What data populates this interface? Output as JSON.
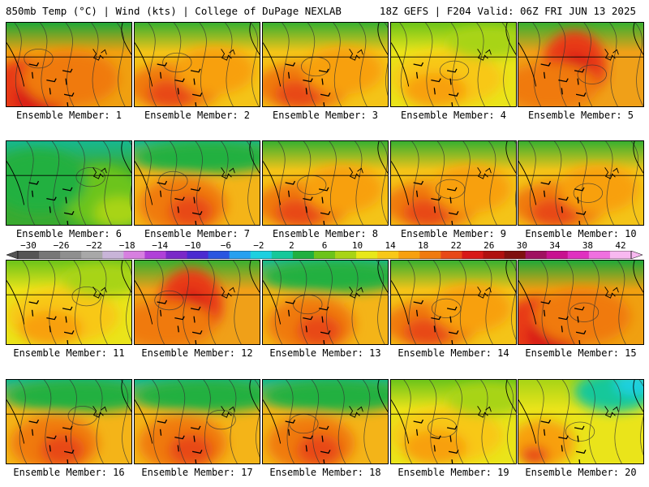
{
  "header": {
    "left": "850mb Temp (°C) | Wind (kts) | College of DuPage NEXLAB",
    "right": "18Z GEFS | F204 Valid: 06Z FRI JUN 13 2025"
  },
  "panels": [
    {
      "label": "Ensemble Member: 1",
      "scheme": "hot-sw"
    },
    {
      "label": "Ensemble Member: 2",
      "scheme": "warm"
    },
    {
      "label": "Ensemble Member: 3",
      "scheme": "warm"
    },
    {
      "label": "Ensemble Member: 4",
      "scheme": "mild"
    },
    {
      "label": "Ensemble Member: 5",
      "scheme": "hot-c"
    },
    {
      "label": "Ensemble Member: 6",
      "scheme": "cool"
    },
    {
      "label": "Ensemble Member: 7",
      "scheme": "warm-green"
    },
    {
      "label": "Ensemble Member: 8",
      "scheme": "warm"
    },
    {
      "label": "Ensemble Member: 9",
      "scheme": "warm"
    },
    {
      "label": "Ensemble Member: 10",
      "scheme": "warm"
    },
    {
      "label": "Ensemble Member: 11",
      "scheme": "mild"
    },
    {
      "label": "Ensemble Member: 12",
      "scheme": "hot-c"
    },
    {
      "label": "Ensemble Member: 13",
      "scheme": "warm-green"
    },
    {
      "label": "Ensemble Member: 14",
      "scheme": "warm"
    },
    {
      "label": "Ensemble Member: 15",
      "scheme": "hot-sw"
    },
    {
      "label": "Ensemble Member: 16",
      "scheme": "warm-green"
    },
    {
      "label": "Ensemble Member: 17",
      "scheme": "warm-green"
    },
    {
      "label": "Ensemble Member: 18",
      "scheme": "warm-green"
    },
    {
      "label": "Ensemble Member: 19",
      "scheme": "mild"
    },
    {
      "label": "Ensemble Member: 20",
      "scheme": "mild-ne-cool"
    }
  ],
  "colorbar": {
    "labels": [
      "−30",
      "−26",
      "−22",
      "−18",
      "−14",
      "−10",
      "−6",
      "−2",
      "2",
      "6",
      "10",
      "14",
      "18",
      "22",
      "26",
      "30",
      "34",
      "38",
      "42"
    ],
    "colors": [
      "#555555",
      "#777777",
      "#8f8f8f",
      "#a8a8a8",
      "#c8b4d8",
      "#d77fe0",
      "#b040d8",
      "#7a28c8",
      "#4b2ad0",
      "#2a55e0",
      "#28a0f0",
      "#1cd0e0",
      "#16c89a",
      "#20b040",
      "#6cc41a",
      "#a8d416",
      "#e8e81a",
      "#f8c818",
      "#f8a010",
      "#f07a10",
      "#e84818",
      "#d81818",
      "#b01010",
      "#801010",
      "#a01060",
      "#c81090",
      "#e030c0",
      "#f070e0",
      "#f8b8f0"
    ]
  }
}
